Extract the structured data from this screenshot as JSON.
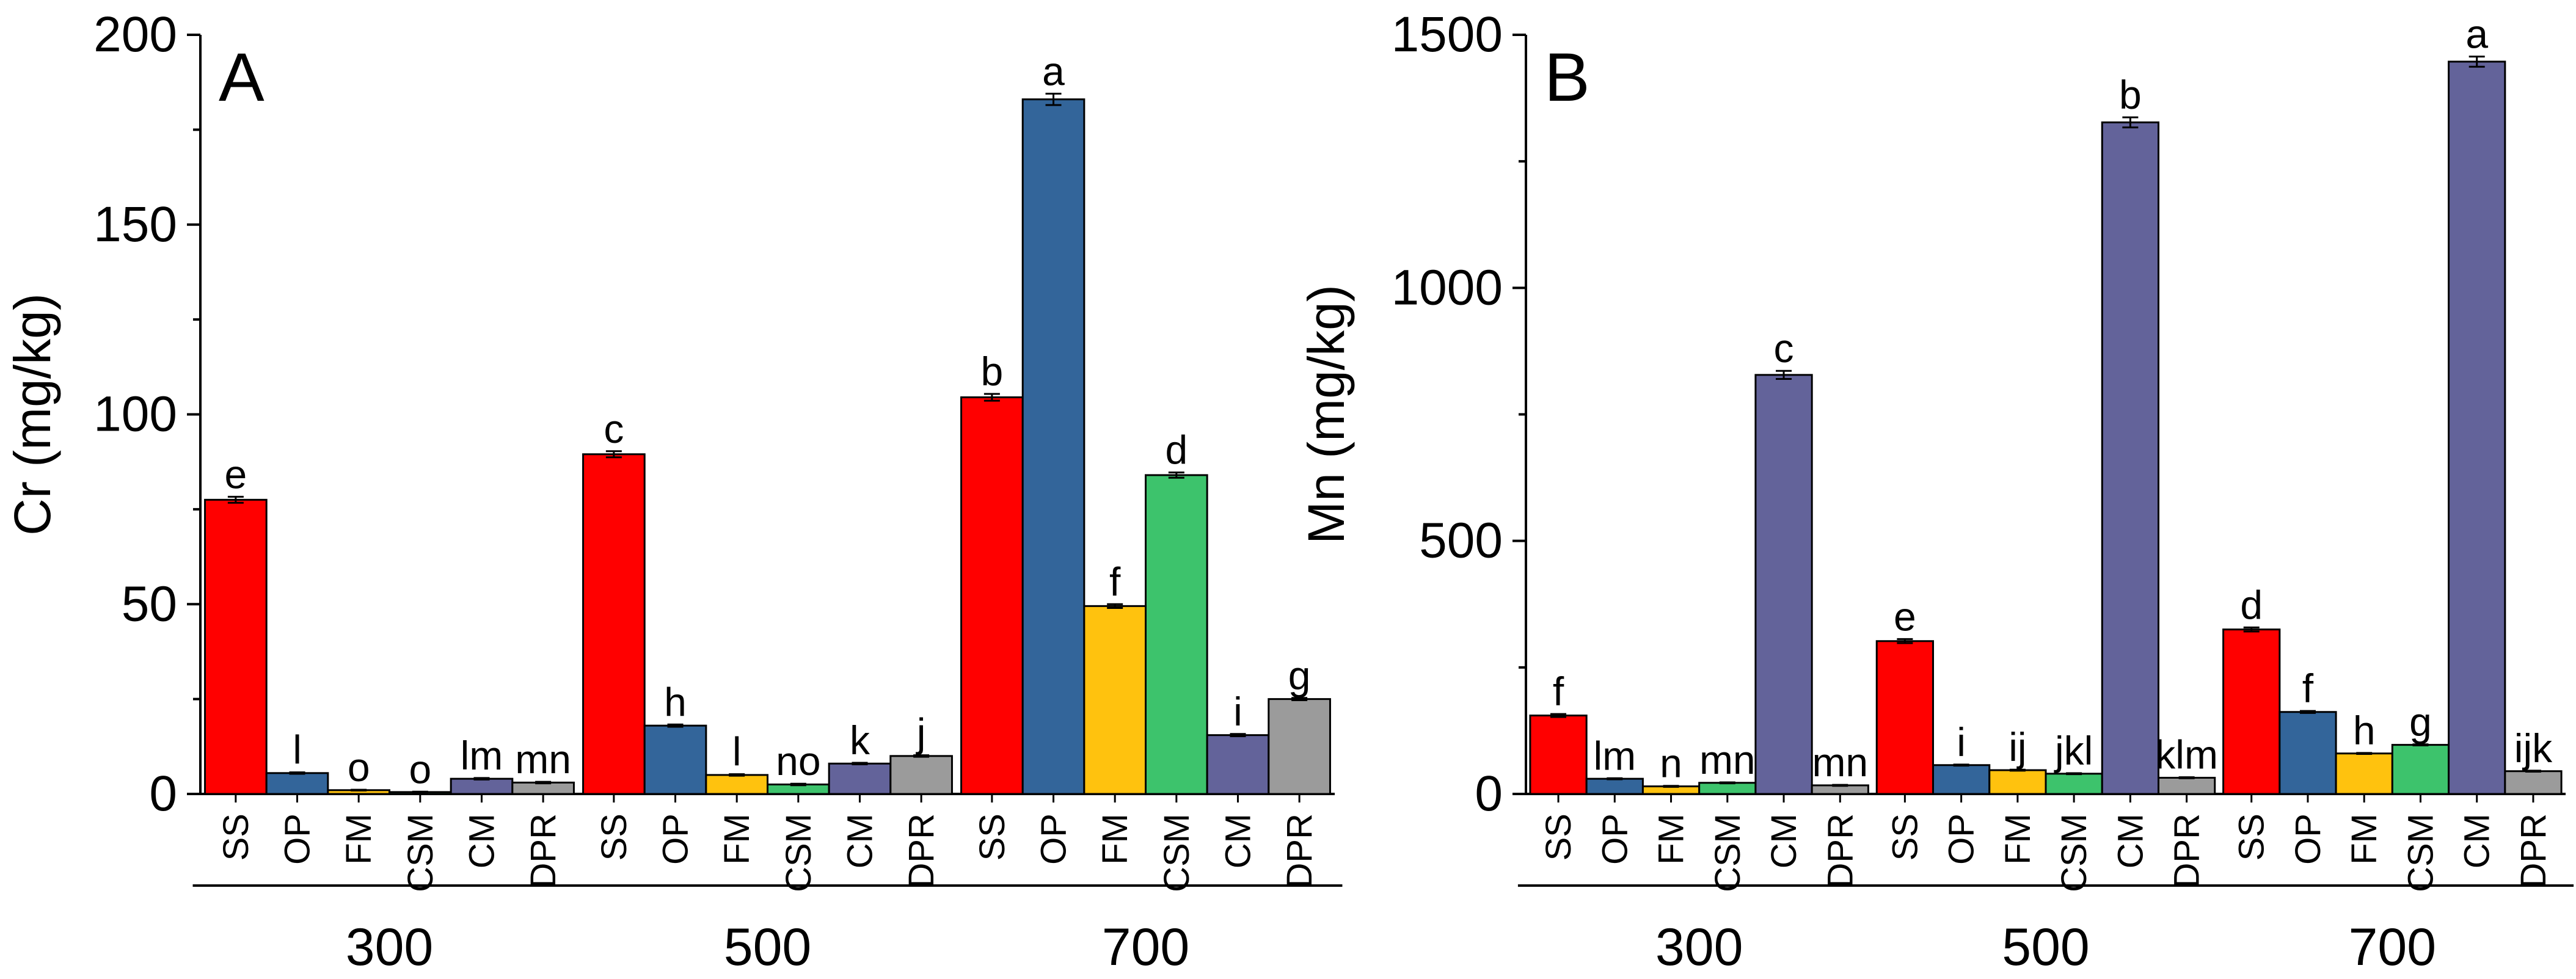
{
  "chart_data": [
    {
      "type": "bar",
      "panel_label": "A",
      "ylabel": "Cr (mg/kg)",
      "xlabel": "",
      "ylim": [
        0,
        200
      ],
      "yticks": [
        0,
        50,
        100,
        150,
        200
      ],
      "groups": [
        {
          "name": "300",
          "categories": [
            "SS",
            "OP",
            "FM",
            "CSM",
            "CM",
            "DPR"
          ],
          "values": [
            77.5,
            5.5,
            1.0,
            0.5,
            4.0,
            3.0
          ],
          "errors": [
            0.8,
            0.2,
            0.1,
            0.1,
            0.2,
            0.2
          ],
          "letters": [
            "e",
            "l",
            "o",
            "o",
            "lm",
            "mn"
          ]
        },
        {
          "name": "500",
          "categories": [
            "SS",
            "OP",
            "FM",
            "CSM",
            "CM",
            "DPR"
          ],
          "values": [
            89.5,
            18.0,
            5.0,
            2.5,
            8.0,
            10.0
          ],
          "errors": [
            0.8,
            0.3,
            0.2,
            0.2,
            0.2,
            0.2
          ],
          "letters": [
            "c",
            "h",
            "l",
            "no",
            "k",
            "j"
          ]
        },
        {
          "name": "700",
          "categories": [
            "SS",
            "OP",
            "FM",
            "CSM",
            "CM",
            "DPR"
          ],
          "values": [
            104.5,
            183.0,
            49.5,
            84.0,
            15.5,
            25.0
          ],
          "errors": [
            0.9,
            1.5,
            0.5,
            0.7,
            0.3,
            0.3
          ],
          "letters": [
            "b",
            "a",
            "f",
            "d",
            "i",
            "g"
          ]
        }
      ],
      "colors": [
        "#ff0000",
        "#33659a",
        "#ffc20e",
        "#3dc36c",
        "#63639a",
        "#9b9b9b"
      ]
    },
    {
      "type": "bar",
      "panel_label": "B",
      "ylabel": "Mn (mg/kg)",
      "xlabel": "",
      "ylim": [
        0,
        1500
      ],
      "yticks": [
        0,
        500,
        1000,
        1500
      ],
      "groups": [
        {
          "name": "300",
          "categories": [
            "SS",
            "OP",
            "FM",
            "CSM",
            "CM",
            "DPR"
          ],
          "values": [
            155,
            30,
            15,
            22,
            828,
            17
          ],
          "errors": [
            3,
            1,
            1,
            1,
            8,
            1
          ],
          "letters": [
            "f",
            "lm",
            "n",
            "mn",
            "c",
            "mn"
          ]
        },
        {
          "name": "500",
          "categories": [
            "SS",
            "OP",
            "FM",
            "CSM",
            "CM",
            "DPR"
          ],
          "values": [
            302,
            57,
            47,
            40,
            1327,
            32
          ],
          "errors": [
            4,
            1,
            1,
            1,
            10,
            1
          ],
          "letters": [
            "e",
            "i",
            "ij",
            "jkl",
            "b",
            "klm"
          ]
        },
        {
          "name": "700",
          "categories": [
            "SS",
            "OP",
            "FM",
            "CSM",
            "CM",
            "DPR"
          ],
          "values": [
            325,
            162,
            80,
            97,
            1447,
            45
          ],
          "errors": [
            4,
            2,
            1,
            1,
            10,
            1
          ],
          "letters": [
            "d",
            "f",
            "h",
            "g",
            "a",
            "ijk"
          ]
        }
      ],
      "colors": [
        "#ff0000",
        "#33659a",
        "#ffc20e",
        "#3dc36c",
        "#63639a",
        "#9b9b9b"
      ]
    }
  ]
}
